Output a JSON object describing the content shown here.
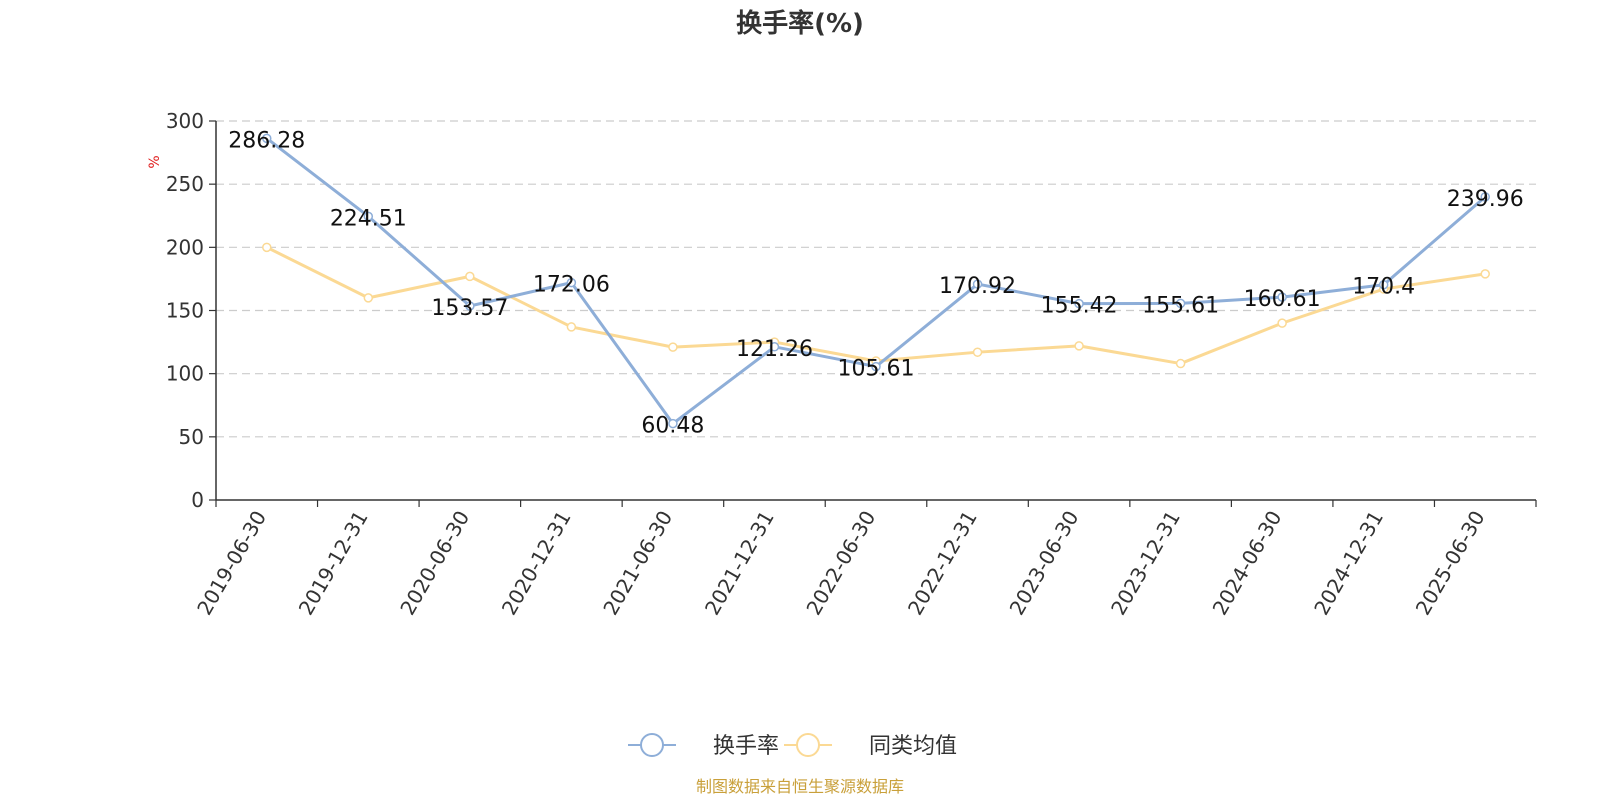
{
  "chart_data": {
    "type": "line",
    "title": "换手率(%)",
    "ylabel": "%",
    "ylim": [
      0,
      300
    ],
    "yticks": [
      0,
      50,
      100,
      150,
      200,
      250,
      300
    ],
    "grid": true,
    "legend_position": "bottom",
    "categories": [
      "2019-06-30",
      "2019-12-31",
      "2020-06-30",
      "2020-12-31",
      "2021-06-30",
      "2021-12-31",
      "2022-06-30",
      "2022-12-31",
      "2023-06-30",
      "2023-12-31",
      "2024-06-30",
      "2024-12-31",
      "2025-06-30"
    ],
    "series": [
      {
        "name": "换手率",
        "color": "#8eaed8",
        "values": [
          286.28,
          224.51,
          153.57,
          172.06,
          60.48,
          121.26,
          105.61,
          170.92,
          155.42,
          155.61,
          160.61,
          170.4,
          239.96
        ],
        "labels": [
          "286.28",
          "224.51",
          "153.57",
          "172.06",
          "60.48",
          "121.26",
          "105.61",
          "170.92",
          "155.42",
          "155.61",
          "160.61",
          "170.4",
          "239.96"
        ]
      },
      {
        "name": "同类均值",
        "color": "#fbd994",
        "values": [
          200,
          160,
          177,
          137,
          121,
          125,
          110,
          117,
          122,
          108,
          140,
          167,
          179
        ]
      }
    ],
    "unit_color": "#e02020"
  },
  "footer": {
    "source": "制图数据来自恒生聚源数据库",
    "color": "#c9a03a"
  }
}
